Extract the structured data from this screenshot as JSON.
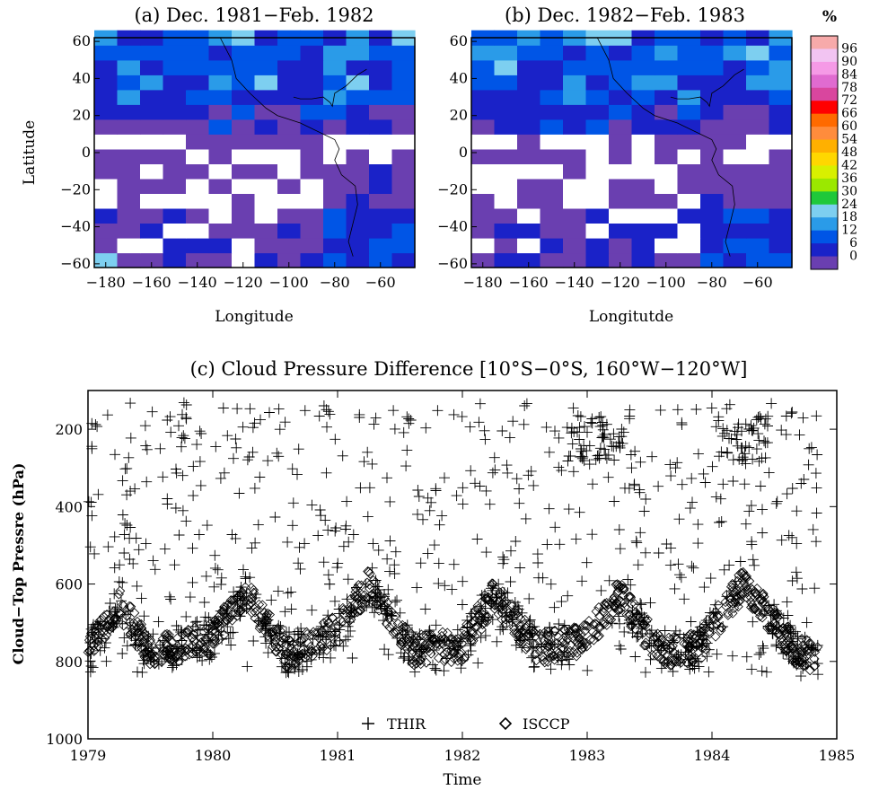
{
  "chart_data": [
    {
      "type": "heatmap",
      "title": "(a) Dec. 1981−Feb. 1982",
      "xlabel": "Longitude",
      "ylabel": "Latitude",
      "xlim": [
        -185,
        -45
      ],
      "ylim": [
        -62,
        62
      ],
      "xticks": [
        "−180",
        "−160",
        "−140",
        "−120",
        "−100",
        "−80",
        "−60"
      ],
      "yticks": [
        "60",
        "40",
        "20",
        "0",
        "−20",
        "−40",
        "−60"
      ],
      "levels_percent": [
        {
          "lon": -170,
          "lat": 50,
          "value": 12
        },
        {
          "lon": -130,
          "lat": 48,
          "value": 18
        },
        {
          "lon": -90,
          "lat": 45,
          "value": 12
        },
        {
          "lon": -75,
          "lat": 55,
          "value": 18
        },
        {
          "lon": -150,
          "lat": 25,
          "value": 12
        },
        {
          "lon": -110,
          "lat": 28,
          "value": 6
        },
        {
          "lon": -140,
          "lat": -5,
          "value": 0
        },
        {
          "lon": -120,
          "lat": -20,
          "value": 0
        },
        {
          "lon": -160,
          "lat": -30,
          "value": 0
        },
        {
          "lon": -80,
          "lat": -40,
          "value": 6
        },
        {
          "lon": -60,
          "lat": -52,
          "value": 12
        },
        {
          "lon": -178,
          "lat": -58,
          "value": 30
        }
      ]
    },
    {
      "type": "heatmap",
      "title": "(b) Dec. 1982−Feb. 1983",
      "xlabel": "Longitutde",
      "ylabel": "",
      "xlim": [
        -185,
        -45
      ],
      "ylim": [
        -62,
        62
      ],
      "xticks": [
        "−180",
        "−160",
        "−140",
        "−120",
        "−100",
        "−80",
        "−60"
      ],
      "yticks": [
        "60",
        "40",
        "20",
        "0",
        "−20",
        "−40",
        "−60"
      ],
      "levels_percent": [
        {
          "lon": -170,
          "lat": 50,
          "value": 12
        },
        {
          "lon": -120,
          "lat": 55,
          "value": 18
        },
        {
          "lon": -100,
          "lat": 53,
          "value": 24
        },
        {
          "lon": -75,
          "lat": 50,
          "value": 12
        },
        {
          "lon": -150,
          "lat": 25,
          "value": 12
        },
        {
          "lon": -110,
          "lat": 30,
          "value": 6
        },
        {
          "lon": -150,
          "lat": -5,
          "value": 0
        },
        {
          "lon": -110,
          "lat": -18,
          "value": 0
        },
        {
          "lon": -80,
          "lat": -40,
          "value": 6
        },
        {
          "lon": -60,
          "lat": -50,
          "value": 12
        }
      ]
    },
    {
      "type": "colorbar",
      "title": "%",
      "ticks": [
        "96",
        "90",
        "84",
        "78",
        "72",
        "66",
        "60",
        "54",
        "48",
        "42",
        "36",
        "30",
        "24",
        "18",
        "12",
        "6",
        "0"
      ],
      "colors": [
        "#f7aaaa",
        "#f2c4f2",
        "#f59ae6",
        "#e06bd0",
        "#d9469e",
        "#ff0000",
        "#ff6a00",
        "#ff8c3c",
        "#ffb000",
        "#ffd700",
        "#d8f000",
        "#9be800",
        "#1fc83a",
        "#7dcff0",
        "#2a9be8",
        "#0055e6",
        "#1a22c8",
        "#6a3fb0"
      ]
    },
    {
      "type": "scatter",
      "title": "(c) Cloud Pressure Difference [10°S−0°S, 160°W−120°W]",
      "xlabel": "Time",
      "ylabel": "Cloud−Top Pressre (hPa)",
      "xlim": [
        1979,
        1985
      ],
      "ylim": [
        1000,
        100
      ],
      "xticks": [
        "1979",
        "1980",
        "1981",
        "1982",
        "1983",
        "1984",
        "1985"
      ],
      "yticks": [
        "200",
        "400",
        "600",
        "800",
        "1000"
      ],
      "series": [
        {
          "name": "THIR",
          "marker": "plus",
          "n_points": 2100
        },
        {
          "name": "ISCCP",
          "marker": "diamond",
          "n_points": 2100
        }
      ],
      "isccp_mean_curve": [
        {
          "x": 1979.0,
          "y": 780
        },
        {
          "x": 1979.25,
          "y": 650
        },
        {
          "x": 1979.5,
          "y": 780
        },
        {
          "x": 1980.0,
          "y": 740
        },
        {
          "x": 1980.25,
          "y": 620
        },
        {
          "x": 1980.6,
          "y": 780
        },
        {
          "x": 1981.0,
          "y": 720
        },
        {
          "x": 1981.25,
          "y": 600
        },
        {
          "x": 1981.6,
          "y": 770
        },
        {
          "x": 1982.0,
          "y": 760
        },
        {
          "x": 1982.25,
          "y": 630
        },
        {
          "x": 1982.6,
          "y": 770
        },
        {
          "x": 1983.0,
          "y": 740
        },
        {
          "x": 1983.25,
          "y": 630
        },
        {
          "x": 1983.6,
          "y": 780
        },
        {
          "x": 1983.9,
          "y": 760
        },
        {
          "x": 1984.25,
          "y": 600
        },
        {
          "x": 1984.7,
          "y": 780
        },
        {
          "x": 1984.85,
          "y": 790
        }
      ],
      "thir_high_cluster": [
        {
          "x": 1983.0,
          "y": 200
        },
        {
          "x": 1983.15,
          "y": 200
        },
        {
          "x": 1984.25,
          "y": 260
        }
      ]
    }
  ]
}
